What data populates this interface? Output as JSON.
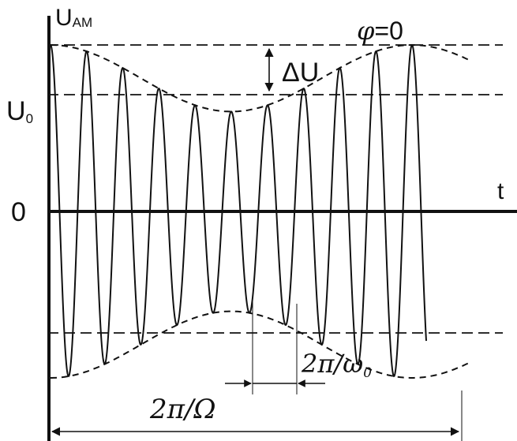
{
  "labels": {
    "u_am_main": "U",
    "u_am_sub": "AM",
    "phi": "φ",
    "phi_eq": "=0",
    "delta_u": "ΔU",
    "u0_main": "U",
    "u0_sub": "0",
    "zero": "0",
    "t_axis": "t",
    "period_carrier_main": "2π/ω",
    "period_carrier_sub": "0",
    "period_modulation": "2π/Ω"
  },
  "signal": {
    "carrier_oscillations_per_period": 10,
    "modulation_depth_relative": 0.4,
    "start_phase": "φ=0"
  },
  "colors": {
    "ink": "#111111",
    "background": "#ffffff"
  }
}
